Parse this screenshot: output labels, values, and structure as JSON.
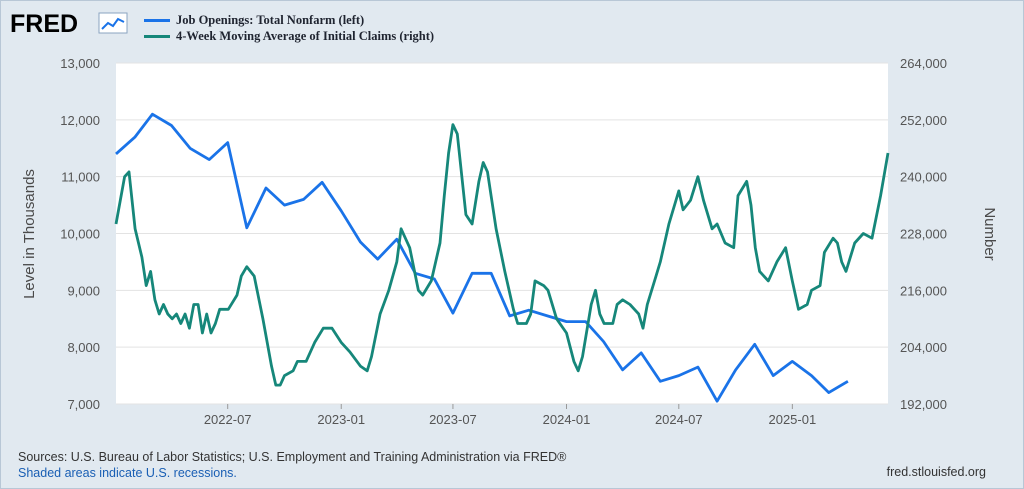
{
  "brand": {
    "logo_text": "FRED"
  },
  "legend": {
    "items": [
      {
        "label": "Job Openings: Total Nonfarm (left)",
        "color": "#1a73e8"
      },
      {
        "label": "4-Week Moving Average of Initial Claims (right)",
        "color": "#16877a"
      }
    ]
  },
  "footer": {
    "sources": "Sources: U.S. Bureau of Labor Statistics; U.S. Employment and Training Administration via FRED®",
    "shaded_note": "Shaded areas indicate U.S. recessions.",
    "site": "fred.stlouisfed.org"
  },
  "chart_data": {
    "type": "line",
    "x_range": [
      "2022-01-01",
      "2025-06-05"
    ],
    "xticks": [
      {
        "label": "2022-07",
        "date": "2022-07-01"
      },
      {
        "label": "2023-01",
        "date": "2023-01-01"
      },
      {
        "label": "2023-07",
        "date": "2023-07-01"
      },
      {
        "label": "2024-01",
        "date": "2024-01-01"
      },
      {
        "label": "2024-07",
        "date": "2024-07-01"
      },
      {
        "label": "2025-01",
        "date": "2025-01-01"
      }
    ],
    "ylabel_left": "Level in Thousands",
    "ylim_left": [
      7000,
      13000
    ],
    "yticks_left": [
      "7,000",
      "8,000",
      "9,000",
      "10,000",
      "11,000",
      "12,000",
      "13,000"
    ],
    "ylabel_right": "Number",
    "ylim_right": [
      192000,
      264000
    ],
    "yticks_right": [
      "192,000",
      "204,000",
      "216,000",
      "228,000",
      "240,000",
      "252,000",
      "264,000"
    ],
    "grid": "horizontal",
    "series": [
      {
        "name": "Job Openings: Total Nonfarm (left)",
        "axis": "left",
        "color": "#1a73e8",
        "points": [
          [
            "2022-01-01",
            11400
          ],
          [
            "2022-02-01",
            11700
          ],
          [
            "2022-03-01",
            12100
          ],
          [
            "2022-04-01",
            11900
          ],
          [
            "2022-05-01",
            11500
          ],
          [
            "2022-06-01",
            11300
          ],
          [
            "2022-07-01",
            11600
          ],
          [
            "2022-08-01",
            10100
          ],
          [
            "2022-09-01",
            10800
          ],
          [
            "2022-10-01",
            10500
          ],
          [
            "2022-11-01",
            10600
          ],
          [
            "2022-12-01",
            10900
          ],
          [
            "2023-01-01",
            10400
          ],
          [
            "2023-02-01",
            9850
          ],
          [
            "2023-03-01",
            9550
          ],
          [
            "2023-04-01",
            9900
          ],
          [
            "2023-05-01",
            9300
          ],
          [
            "2023-06-01",
            9200
          ],
          [
            "2023-07-01",
            8600
          ],
          [
            "2023-08-01",
            9300
          ],
          [
            "2023-09-01",
            9300
          ],
          [
            "2023-10-01",
            8550
          ],
          [
            "2023-11-01",
            8650
          ],
          [
            "2023-12-01",
            8550
          ],
          [
            "2024-01-01",
            8450
          ],
          [
            "2024-02-01",
            8450
          ],
          [
            "2024-03-01",
            8100
          ],
          [
            "2024-04-01",
            7600
          ],
          [
            "2024-05-01",
            7900
          ],
          [
            "2024-06-01",
            7400
          ],
          [
            "2024-07-01",
            7500
          ],
          [
            "2024-08-01",
            7650
          ],
          [
            "2024-09-01",
            7050
          ],
          [
            "2024-10-01",
            7600
          ],
          [
            "2024-11-01",
            8050
          ],
          [
            "2024-12-01",
            7500
          ],
          [
            "2025-01-01",
            7750
          ],
          [
            "2025-02-01",
            7500
          ],
          [
            "2025-03-01",
            7200
          ],
          [
            "2025-04-01",
            7400
          ]
        ]
      },
      {
        "name": "4-Week Moving Average of Initial Claims (right)",
        "axis": "right",
        "color": "#16877a",
        "points": [
          [
            "2022-01-01",
            230000
          ],
          [
            "2022-01-15",
            240000
          ],
          [
            "2022-01-22",
            241000
          ],
          [
            "2022-02-01",
            229000
          ],
          [
            "2022-02-12",
            223000
          ],
          [
            "2022-02-19",
            217000
          ],
          [
            "2022-02-26",
            220000
          ],
          [
            "2022-03-05",
            214000
          ],
          [
            "2022-03-12",
            211000
          ],
          [
            "2022-03-19",
            213000
          ],
          [
            "2022-03-26",
            211000
          ],
          [
            "2022-04-02",
            210000
          ],
          [
            "2022-04-09",
            211000
          ],
          [
            "2022-04-16",
            209000
          ],
          [
            "2022-04-23",
            211000
          ],
          [
            "2022-04-30",
            208000
          ],
          [
            "2022-05-07",
            213000
          ],
          [
            "2022-05-14",
            213000
          ],
          [
            "2022-05-21",
            207000
          ],
          [
            "2022-05-28",
            211000
          ],
          [
            "2022-06-04",
            207000
          ],
          [
            "2022-06-11",
            209000
          ],
          [
            "2022-06-18",
            212000
          ],
          [
            "2022-06-25",
            212000
          ],
          [
            "2022-07-02",
            212000
          ],
          [
            "2022-07-16",
            215000
          ],
          [
            "2022-07-23",
            219000
          ],
          [
            "2022-08-01",
            221000
          ],
          [
            "2022-08-13",
            219000
          ],
          [
            "2022-08-27",
            210000
          ],
          [
            "2022-09-10",
            200000
          ],
          [
            "2022-09-17",
            196000
          ],
          [
            "2022-09-24",
            196000
          ],
          [
            "2022-10-01",
            198000
          ],
          [
            "2022-10-15",
            199000
          ],
          [
            "2022-10-22",
            201000
          ],
          [
            "2022-11-05",
            201000
          ],
          [
            "2022-11-19",
            205000
          ],
          [
            "2022-12-03",
            208000
          ],
          [
            "2022-12-17",
            208000
          ],
          [
            "2023-01-01",
            205000
          ],
          [
            "2023-01-15",
            203000
          ],
          [
            "2023-02-01",
            200000
          ],
          [
            "2023-02-12",
            199000
          ],
          [
            "2023-02-19",
            202000
          ],
          [
            "2023-03-05",
            211000
          ],
          [
            "2023-03-19",
            216000
          ],
          [
            "2023-04-01",
            222000
          ],
          [
            "2023-04-08",
            229000
          ],
          [
            "2023-04-22",
            225000
          ],
          [
            "2023-05-06",
            216000
          ],
          [
            "2023-05-13",
            215000
          ],
          [
            "2023-05-27",
            218000
          ],
          [
            "2023-06-10",
            226000
          ],
          [
            "2023-06-17",
            236000
          ],
          [
            "2023-06-24",
            245000
          ],
          [
            "2023-07-01",
            251000
          ],
          [
            "2023-07-08",
            249000
          ],
          [
            "2023-07-22",
            232000
          ],
          [
            "2023-08-01",
            230000
          ],
          [
            "2023-08-12",
            239000
          ],
          [
            "2023-08-19",
            243000
          ],
          [
            "2023-08-26",
            241000
          ],
          [
            "2023-09-09",
            229000
          ],
          [
            "2023-09-23",
            220000
          ],
          [
            "2023-10-07",
            212000
          ],
          [
            "2023-10-14",
            209000
          ],
          [
            "2023-10-28",
            209000
          ],
          [
            "2023-11-04",
            211000
          ],
          [
            "2023-11-11",
            218000
          ],
          [
            "2023-11-25",
            217000
          ],
          [
            "2023-12-02",
            216000
          ],
          [
            "2023-12-16",
            210000
          ],
          [
            "2024-01-01",
            207000
          ],
          [
            "2024-01-13",
            201000
          ],
          [
            "2024-01-20",
            199000
          ],
          [
            "2024-01-27",
            202000
          ],
          [
            "2024-02-10",
            213000
          ],
          [
            "2024-02-17",
            216000
          ],
          [
            "2024-02-24",
            211000
          ],
          [
            "2024-03-02",
            209000
          ],
          [
            "2024-03-16",
            209000
          ],
          [
            "2024-03-23",
            213000
          ],
          [
            "2024-04-01",
            214000
          ],
          [
            "2024-04-13",
            213000
          ],
          [
            "2024-04-27",
            211000
          ],
          [
            "2024-05-04",
            208000
          ],
          [
            "2024-05-11",
            213000
          ],
          [
            "2024-05-25",
            219000
          ],
          [
            "2024-06-01",
            222000
          ],
          [
            "2024-06-15",
            230000
          ],
          [
            "2024-07-01",
            237000
          ],
          [
            "2024-07-08",
            233000
          ],
          [
            "2024-07-20",
            235000
          ],
          [
            "2024-08-01",
            240000
          ],
          [
            "2024-08-10",
            235000
          ],
          [
            "2024-08-24",
            229000
          ],
          [
            "2024-09-01",
            230000
          ],
          [
            "2024-09-14",
            226000
          ],
          [
            "2024-09-28",
            225000
          ],
          [
            "2024-10-05",
            236000
          ],
          [
            "2024-10-19",
            239000
          ],
          [
            "2024-10-26",
            234000
          ],
          [
            "2024-11-02",
            225000
          ],
          [
            "2024-11-09",
            220000
          ],
          [
            "2024-11-23",
            218000
          ],
          [
            "2024-12-07",
            222000
          ],
          [
            "2024-12-21",
            225000
          ],
          [
            "2025-01-01",
            218000
          ],
          [
            "2025-01-11",
            212000
          ],
          [
            "2025-01-25",
            213000
          ],
          [
            "2025-02-01",
            216000
          ],
          [
            "2025-02-15",
            217000
          ],
          [
            "2025-02-22",
            224000
          ],
          [
            "2025-03-08",
            227000
          ],
          [
            "2025-03-15",
            226000
          ],
          [
            "2025-03-22",
            222000
          ],
          [
            "2025-03-29",
            220000
          ],
          [
            "2025-04-12",
            226000
          ],
          [
            "2025-04-26",
            228000
          ],
          [
            "2025-05-10",
            227000
          ],
          [
            "2025-05-24",
            236000
          ],
          [
            "2025-06-05",
            245000
          ]
        ]
      }
    ]
  }
}
